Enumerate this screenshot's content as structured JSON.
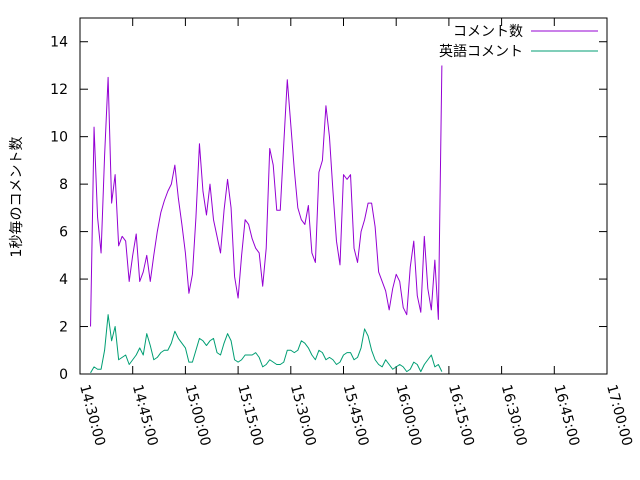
{
  "chart_data": {
    "type": "line",
    "ylabel": "1秒毎のコメント数",
    "xlabel": "",
    "xlim": [
      "14:30:00",
      "17:00:00"
    ],
    "ylim": [
      0,
      15
    ],
    "x_ticks": [
      "14:30:00",
      "14:45:00",
      "15:00:00",
      "15:15:00",
      "15:30:00",
      "15:45:00",
      "16:00:00",
      "16:15:00",
      "16:30:00",
      "16:45:00",
      "17:00:00"
    ],
    "y_ticks": [
      0,
      2,
      4,
      6,
      8,
      10,
      12,
      14
    ],
    "grid": false,
    "legend_position": "top-right",
    "colors": {
      "comments": "#9400d3",
      "english": "#009e73"
    },
    "series": [
      {
        "name": "コメント数",
        "color": "#9400d3",
        "points": [
          [
            "14:33:00",
            2.0
          ],
          [
            "14:34:00",
            10.4
          ],
          [
            "14:35:00",
            6.6
          ],
          [
            "14:36:00",
            5.1
          ],
          [
            "14:37:00",
            9.2
          ],
          [
            "14:38:00",
            12.5
          ],
          [
            "14:39:00",
            7.2
          ],
          [
            "14:40:00",
            8.4
          ],
          [
            "14:41:00",
            5.4
          ],
          [
            "14:42:00",
            5.8
          ],
          [
            "14:43:00",
            5.6
          ],
          [
            "14:44:00",
            3.9
          ],
          [
            "14:45:00",
            5.0
          ],
          [
            "14:46:00",
            5.9
          ],
          [
            "14:47:00",
            3.9
          ],
          [
            "14:48:00",
            4.3
          ],
          [
            "14:49:00",
            5.0
          ],
          [
            "14:50:00",
            3.9
          ],
          [
            "14:51:00",
            5.0
          ],
          [
            "14:52:00",
            6.0
          ],
          [
            "14:53:00",
            6.8
          ],
          [
            "14:54:00",
            7.3
          ],
          [
            "14:55:00",
            7.7
          ],
          [
            "14:56:00",
            8.0
          ],
          [
            "14:57:00",
            8.8
          ],
          [
            "14:58:00",
            7.4
          ],
          [
            "14:59:00",
            6.3
          ],
          [
            "15:00:00",
            5.1
          ],
          [
            "15:01:00",
            3.4
          ],
          [
            "15:02:00",
            4.2
          ],
          [
            "15:03:00",
            6.6
          ],
          [
            "15:04:00",
            9.7
          ],
          [
            "15:05:00",
            7.7
          ],
          [
            "15:06:00",
            6.7
          ],
          [
            "15:07:00",
            8.0
          ],
          [
            "15:08:00",
            6.5
          ],
          [
            "15:09:00",
            5.8
          ],
          [
            "15:10:00",
            5.1
          ],
          [
            "15:11:00",
            6.9
          ],
          [
            "15:12:00",
            8.2
          ],
          [
            "15:13:00",
            7.0
          ],
          [
            "15:14:00",
            4.1
          ],
          [
            "15:15:00",
            3.2
          ],
          [
            "15:16:00",
            5.0
          ],
          [
            "15:17:00",
            6.5
          ],
          [
            "15:18:00",
            6.3
          ],
          [
            "15:19:00",
            5.7
          ],
          [
            "15:20:00",
            5.3
          ],
          [
            "15:21:00",
            5.1
          ],
          [
            "15:22:00",
            3.7
          ],
          [
            "15:23:00",
            5.3
          ],
          [
            "15:24:00",
            9.5
          ],
          [
            "15:25:00",
            8.8
          ],
          [
            "15:26:00",
            6.9
          ],
          [
            "15:27:00",
            6.9
          ],
          [
            "15:28:00",
            9.7
          ],
          [
            "15:29:00",
            12.4
          ],
          [
            "15:30:00",
            10.5
          ],
          [
            "15:31:00",
            8.6
          ],
          [
            "15:32:00",
            7.0
          ],
          [
            "15:33:00",
            6.5
          ],
          [
            "15:34:00",
            6.3
          ],
          [
            "15:35:00",
            7.1
          ],
          [
            "15:36:00",
            5.1
          ],
          [
            "15:37:00",
            4.7
          ],
          [
            "15:38:00",
            8.5
          ],
          [
            "15:39:00",
            9.0
          ],
          [
            "15:40:00",
            11.3
          ],
          [
            "15:41:00",
            10.0
          ],
          [
            "15:42:00",
            7.7
          ],
          [
            "15:43:00",
            5.6
          ],
          [
            "15:44:00",
            4.6
          ],
          [
            "15:45:00",
            8.4
          ],
          [
            "15:46:00",
            8.2
          ],
          [
            "15:47:00",
            8.4
          ],
          [
            "15:48:00",
            5.3
          ],
          [
            "15:49:00",
            4.7
          ],
          [
            "15:50:00",
            6.0
          ],
          [
            "15:51:00",
            6.5
          ],
          [
            "15:52:00",
            7.2
          ],
          [
            "15:53:00",
            7.2
          ],
          [
            "15:54:00",
            6.2
          ],
          [
            "15:55:00",
            4.3
          ],
          [
            "15:56:00",
            3.9
          ],
          [
            "15:57:00",
            3.5
          ],
          [
            "15:58:00",
            2.7
          ],
          [
            "15:59:00",
            3.6
          ],
          [
            "16:00:00",
            4.2
          ],
          [
            "16:01:00",
            3.9
          ],
          [
            "16:02:00",
            2.8
          ],
          [
            "16:03:00",
            2.5
          ],
          [
            "16:04:00",
            4.5
          ],
          [
            "16:05:00",
            5.6
          ],
          [
            "16:06:00",
            3.3
          ],
          [
            "16:07:00",
            2.6
          ],
          [
            "16:08:00",
            5.8
          ],
          [
            "16:09:00",
            3.6
          ],
          [
            "16:10:00",
            2.7
          ],
          [
            "16:11:00",
            4.8
          ],
          [
            "16:12:00",
            2.3
          ],
          [
            "16:13:00",
            13.0
          ]
        ]
      },
      {
        "name": "英語コメント",
        "color": "#009e73",
        "points": [
          [
            "14:33:00",
            0.05
          ],
          [
            "14:34:00",
            0.3
          ],
          [
            "14:35:00",
            0.2
          ],
          [
            "14:36:00",
            0.2
          ],
          [
            "14:37:00",
            1.0
          ],
          [
            "14:38:00",
            2.5
          ],
          [
            "14:39:00",
            1.4
          ],
          [
            "14:40:00",
            2.0
          ],
          [
            "14:41:00",
            0.6
          ],
          [
            "14:42:00",
            0.7
          ],
          [
            "14:43:00",
            0.8
          ],
          [
            "14:44:00",
            0.4
          ],
          [
            "14:45:00",
            0.6
          ],
          [
            "14:46:00",
            0.8
          ],
          [
            "14:47:00",
            1.1
          ],
          [
            "14:48:00",
            0.8
          ],
          [
            "14:49:00",
            1.7
          ],
          [
            "14:50:00",
            1.2
          ],
          [
            "14:51:00",
            0.6
          ],
          [
            "14:52:00",
            0.7
          ],
          [
            "14:53:00",
            0.9
          ],
          [
            "14:54:00",
            1.0
          ],
          [
            "14:55:00",
            1.0
          ],
          [
            "14:56:00",
            1.3
          ],
          [
            "14:57:00",
            1.8
          ],
          [
            "14:58:00",
            1.5
          ],
          [
            "14:59:00",
            1.3
          ],
          [
            "15:00:00",
            1.1
          ],
          [
            "15:01:00",
            0.5
          ],
          [
            "15:02:00",
            0.5
          ],
          [
            "15:03:00",
            1.0
          ],
          [
            "15:04:00",
            1.5
          ],
          [
            "15:05:00",
            1.4
          ],
          [
            "15:06:00",
            1.2
          ],
          [
            "15:07:00",
            1.4
          ],
          [
            "15:08:00",
            1.5
          ],
          [
            "15:09:00",
            0.9
          ],
          [
            "15:10:00",
            0.8
          ],
          [
            "15:11:00",
            1.3
          ],
          [
            "15:12:00",
            1.7
          ],
          [
            "15:13:00",
            1.4
          ],
          [
            "15:14:00",
            0.6
          ],
          [
            "15:15:00",
            0.5
          ],
          [
            "15:16:00",
            0.6
          ],
          [
            "15:17:00",
            0.8
          ],
          [
            "15:18:00",
            0.8
          ],
          [
            "15:19:00",
            0.8
          ],
          [
            "15:20:00",
            0.9
          ],
          [
            "15:21:00",
            0.7
          ],
          [
            "15:22:00",
            0.3
          ],
          [
            "15:23:00",
            0.4
          ],
          [
            "15:24:00",
            0.6
          ],
          [
            "15:25:00",
            0.5
          ],
          [
            "15:26:00",
            0.4
          ],
          [
            "15:27:00",
            0.4
          ],
          [
            "15:28:00",
            0.5
          ],
          [
            "15:29:00",
            1.0
          ],
          [
            "15:30:00",
            1.0
          ],
          [
            "15:31:00",
            0.9
          ],
          [
            "15:32:00",
            1.0
          ],
          [
            "15:33:00",
            1.4
          ],
          [
            "15:34:00",
            1.3
          ],
          [
            "15:35:00",
            1.1
          ],
          [
            "15:36:00",
            0.8
          ],
          [
            "15:37:00",
            0.6
          ],
          [
            "15:38:00",
            1.0
          ],
          [
            "15:39:00",
            0.9
          ],
          [
            "15:40:00",
            0.6
          ],
          [
            "15:41:00",
            0.7
          ],
          [
            "15:42:00",
            0.6
          ],
          [
            "15:43:00",
            0.4
          ],
          [
            "15:44:00",
            0.5
          ],
          [
            "15:45:00",
            0.8
          ],
          [
            "15:46:00",
            0.9
          ],
          [
            "15:47:00",
            0.9
          ],
          [
            "15:48:00",
            0.6
          ],
          [
            "15:49:00",
            0.7
          ],
          [
            "15:50:00",
            1.1
          ],
          [
            "15:51:00",
            1.9
          ],
          [
            "15:52:00",
            1.6
          ],
          [
            "15:53:00",
            1.0
          ],
          [
            "15:54:00",
            0.6
          ],
          [
            "15:55:00",
            0.4
          ],
          [
            "15:56:00",
            0.3
          ],
          [
            "15:57:00",
            0.6
          ],
          [
            "15:58:00",
            0.4
          ],
          [
            "15:59:00",
            0.2
          ],
          [
            "16:00:00",
            0.3
          ],
          [
            "16:01:00",
            0.4
          ],
          [
            "16:02:00",
            0.3
          ],
          [
            "16:03:00",
            0.1
          ],
          [
            "16:04:00",
            0.2
          ],
          [
            "16:05:00",
            0.5
          ],
          [
            "16:06:00",
            0.4
          ],
          [
            "16:07:00",
            0.1
          ],
          [
            "16:08:00",
            0.4
          ],
          [
            "16:09:00",
            0.6
          ],
          [
            "16:10:00",
            0.8
          ],
          [
            "16:11:00",
            0.3
          ],
          [
            "16:12:00",
            0.4
          ],
          [
            "16:13:00",
            0.1
          ]
        ]
      }
    ]
  }
}
